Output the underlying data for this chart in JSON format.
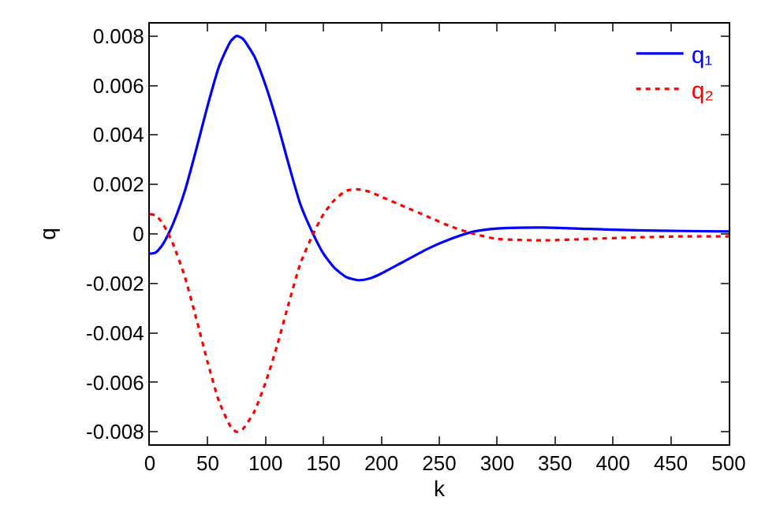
{
  "chart_data": {
    "type": "line",
    "xlabel": "k",
    "ylabel": "q",
    "xlim": [
      0,
      500
    ],
    "xticks": [
      0,
      50,
      100,
      150,
      200,
      250,
      300,
      350,
      400,
      450,
      500
    ],
    "ylim": [
      -0.0085,
      0.0085
    ],
    "yticks": [
      -0.008,
      -0.006,
      -0.004,
      -0.002,
      0,
      0.002,
      0.004,
      0.006,
      0.008
    ],
    "legend": "top right",
    "marker": "none",
    "x": [
      0,
      5,
      10,
      15,
      20,
      30,
      40,
      50,
      60,
      70,
      75,
      80,
      90,
      100,
      110,
      120,
      130,
      140,
      150,
      160,
      170,
      180,
      190,
      200,
      220,
      240,
      260,
      280,
      300,
      340,
      380,
      420,
      460,
      500
    ],
    "series": [
      {
        "name": "q₁",
        "color": "#0000ff",
        "line_style": "solid",
        "values": [
          -0.0008,
          -0.00075,
          -0.0005,
          -0.0001,
          0.0004,
          0.0017,
          0.0034,
          0.0052,
          0.0068,
          0.0078,
          0.008,
          0.0079,
          0.0072,
          0.006,
          0.0045,
          0.0028,
          0.0012,
          0.0001,
          -0.0008,
          -0.0014,
          -0.00175,
          -0.00187,
          -0.0018,
          -0.0016,
          -0.0011,
          -0.0006,
          -0.0002,
          0.0001,
          0.00022,
          0.00026,
          0.0002,
          0.00015,
          0.00012,
          0.0001
        ]
      },
      {
        "name": "q₂",
        "color": "#ff0000",
        "line_style": "dotted",
        "values": [
          0.0008,
          0.00075,
          0.0005,
          0.0001,
          -0.0004,
          -0.0017,
          -0.0034,
          -0.0052,
          -0.0068,
          -0.0078,
          -0.008,
          -0.0079,
          -0.0072,
          -0.006,
          -0.0045,
          -0.0028,
          -0.0012,
          -0.0001,
          0.0008,
          0.0014,
          0.00175,
          0.0018,
          0.0017,
          0.0015,
          0.0011,
          0.0007,
          0.0003,
          0.0,
          -0.0002,
          -0.00026,
          -0.0002,
          -0.00014,
          -0.0001,
          -0.0001
        ]
      }
    ]
  }
}
